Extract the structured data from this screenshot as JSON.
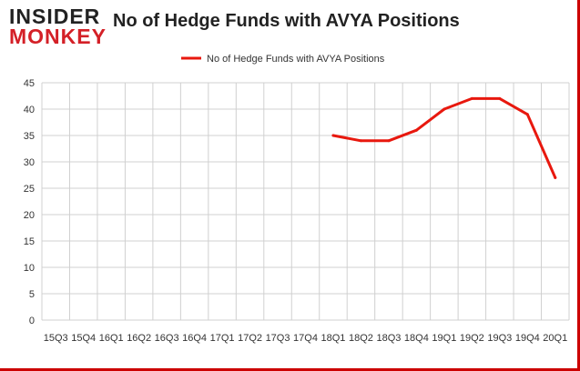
{
  "branding": {
    "logo_line1": "INSIDER",
    "logo_line2": "MONKEY"
  },
  "colors": {
    "series": "#e8180e",
    "grid": "#d0d0d0",
    "frame": "#cc0000"
  },
  "chart_data": {
    "type": "line",
    "title": "No of Hedge Funds with AVYA Positions",
    "xlabel": "",
    "ylabel": "",
    "ylim": [
      0,
      45
    ],
    "yticks": [
      0,
      5,
      10,
      15,
      20,
      25,
      30,
      35,
      40,
      45
    ],
    "grid": true,
    "legend_position": "top-center",
    "categories": [
      "15Q3",
      "15Q4",
      "16Q1",
      "16Q2",
      "16Q3",
      "16Q4",
      "17Q1",
      "17Q2",
      "17Q3",
      "17Q4",
      "18Q1",
      "18Q2",
      "18Q3",
      "18Q4",
      "19Q1",
      "19Q2",
      "19Q3",
      "19Q4",
      "20Q1"
    ],
    "series": [
      {
        "name": "No of Hedge Funds with AVYA Positions",
        "values": [
          null,
          null,
          null,
          null,
          null,
          null,
          null,
          null,
          null,
          null,
          35,
          34,
          34,
          36,
          40,
          42,
          42,
          39,
          27
        ]
      }
    ]
  }
}
